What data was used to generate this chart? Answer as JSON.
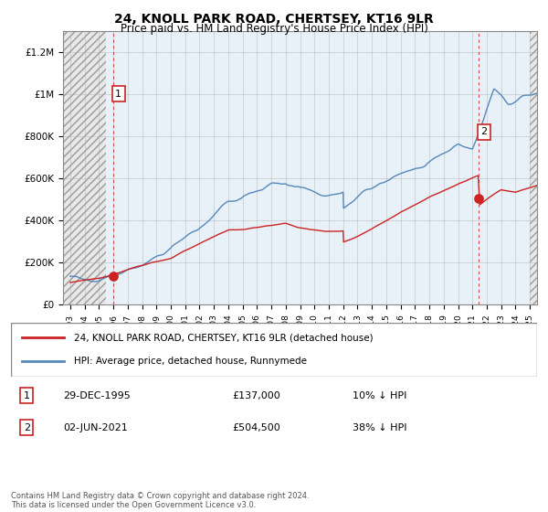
{
  "title1": "24, KNOLL PARK ROAD, CHERTSEY, KT16 9LR",
  "title2": "Price paid vs. HM Land Registry's House Price Index (HPI)",
  "ylabel_ticks": [
    "£0",
    "£200K",
    "£400K",
    "£600K",
    "£800K",
    "£1M",
    "£1.2M"
  ],
  "ytick_values": [
    0,
    200000,
    400000,
    600000,
    800000,
    1000000,
    1200000
  ],
  "ylim": [
    0,
    1300000
  ],
  "xlim_start": 1992.5,
  "xlim_end": 2025.5,
  "sale1_year": 1995.99,
  "sale1_price": 137000,
  "sale1_label": "1",
  "sale2_year": 2021.42,
  "sale2_price": 504500,
  "sale2_label": "2",
  "legend_line1": "24, KNOLL PARK ROAD, CHERTSEY, KT16 9LR (detached house)",
  "legend_line2": "HPI: Average price, detached house, Runnymede",
  "note1_label": "1",
  "note1_date": "29-DEC-1995",
  "note1_price": "£137,000",
  "note1_hpi": "10% ↓ HPI",
  "note2_label": "2",
  "note2_date": "02-JUN-2021",
  "note2_price": "£504,500",
  "note2_hpi": "38% ↓ HPI",
  "copyright": "Contains HM Land Registry data © Crown copyright and database right 2024.\nThis data is licensed under the Open Government Licence v3.0.",
  "hpi_color": "#5588bb",
  "sale_color": "#cc2222",
  "hatch_bg_color": "#e8e8e8",
  "light_blue_bg": "#e8f0f8",
  "grid_color": "#aaaaaa",
  "vline_color": "#cc2222",
  "hatch_split_year": 1995.5
}
